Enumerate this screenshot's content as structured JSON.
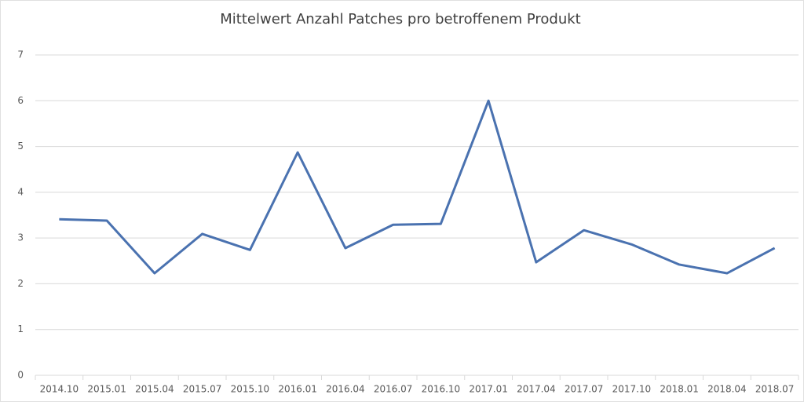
{
  "chart_data": {
    "type": "line",
    "title": "Mittelwert Anzahl Patches pro betroffenem Produkt",
    "categories": [
      "2014.10",
      "2015.01",
      "2015.04",
      "2015.07",
      "2015.10",
      "2016.01",
      "2016.04",
      "2016.07",
      "2016.10",
      "2017.01",
      "2017.04",
      "2017.07",
      "2017.10",
      "2018.01",
      "2018.04",
      "2018.07"
    ],
    "values": [
      3.41,
      3.38,
      2.23,
      3.09,
      2.74,
      4.87,
      2.78,
      3.29,
      3.31,
      6.0,
      2.47,
      3.17,
      2.86,
      2.42,
      2.23,
      2.78
    ],
    "color": "#4a72b0",
    "ylim": [
      0,
      7
    ],
    "yticks": [
      0,
      1,
      2,
      3,
      4,
      5,
      6,
      7
    ],
    "grid": true
  }
}
